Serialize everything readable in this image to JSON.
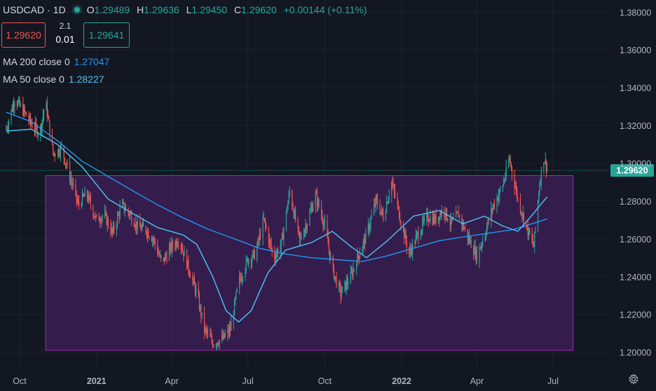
{
  "header": {
    "symbol": "USDCAD",
    "separator": "·",
    "interval": "1D",
    "ohlc": [
      {
        "key": "O",
        "value": "1.29489"
      },
      {
        "key": "H",
        "value": "1.29636"
      },
      {
        "key": "L",
        "value": "1.29450"
      },
      {
        "key": "C",
        "value": "1.29620"
      },
      {
        "key": "",
        "value": "+0.00144 (+0.11%)"
      }
    ]
  },
  "trade": {
    "sell_price": "1.29620",
    "buy_price": "1.29641",
    "spread_top": "2.1",
    "spread_bottom": "0.01"
  },
  "indicators": [
    {
      "label": "MA 200 close 0",
      "value": "1.27047",
      "color": "#2196f3"
    },
    {
      "label": "MA 50 close 0",
      "value": "1.28227",
      "color": "#4fc3f7"
    }
  ],
  "colors": {
    "background": "#131722",
    "up": "#26a69a",
    "down": "#ef5350",
    "zone_fill": "#3b1f53",
    "zone_border": "#9c27b0",
    "current_price_label": "#26a69a"
  },
  "chart_data": {
    "type": "line",
    "instrument": "USDCAD",
    "interval": "1D",
    "x_ticks": [
      "Oct",
      "2021",
      "Apr",
      "Jul",
      "Oct",
      "2022",
      "Apr",
      "Jul"
    ],
    "x_tick_dates": [
      "2020-10-01",
      "2021-01-01",
      "2021-04-01",
      "2021-07-01",
      "2021-10-01",
      "2022-01-01",
      "2022-04-01",
      "2022-07-01"
    ],
    "ylim": [
      1.1906,
      1.3864
    ],
    "y_ticks": [
      "1.20000",
      "1.22000",
      "1.24000",
      "1.26000",
      "1.28000",
      "1.30000",
      "1.32000",
      "1.34000",
      "1.36000",
      "1.38000"
    ],
    "current_price": "1.29620",
    "price_series": {
      "name": "",
      "points": [
        [
          "2020-09-15",
          1.318
        ],
        [
          "2020-09-25",
          1.334
        ],
        [
          "2020-10-05",
          1.328
        ],
        [
          "2020-10-15",
          1.321
        ],
        [
          "2020-10-25",
          1.316
        ],
        [
          "2020-11-01",
          1.333
        ],
        [
          "2020-11-10",
          1.305
        ],
        [
          "2020-11-20",
          1.308
        ],
        [
          "2020-12-01",
          1.292
        ],
        [
          "2020-12-10",
          1.278
        ],
        [
          "2020-12-20",
          1.284
        ],
        [
          "2021-01-01",
          1.27
        ],
        [
          "2021-01-10",
          1.273
        ],
        [
          "2021-01-20",
          1.263
        ],
        [
          "2021-01-31",
          1.278
        ],
        [
          "2021-02-10",
          1.273
        ],
        [
          "2021-02-20",
          1.266
        ],
        [
          "2021-03-01",
          1.265
        ],
        [
          "2021-03-10",
          1.26
        ],
        [
          "2021-03-20",
          1.247
        ],
        [
          "2021-04-01",
          1.256
        ],
        [
          "2021-04-10",
          1.26
        ],
        [
          "2021-04-20",
          1.246
        ],
        [
          "2021-05-01",
          1.231
        ],
        [
          "2021-05-10",
          1.212
        ],
        [
          "2021-05-20",
          1.205
        ],
        [
          "2021-06-01",
          1.207
        ],
        [
          "2021-06-10",
          1.212
        ],
        [
          "2021-06-20",
          1.237
        ],
        [
          "2021-07-01",
          1.249
        ],
        [
          "2021-07-10",
          1.252
        ],
        [
          "2021-07-20",
          1.27
        ],
        [
          "2021-08-01",
          1.25
        ],
        [
          "2021-08-10",
          1.257
        ],
        [
          "2021-08-20",
          1.285
        ],
        [
          "2021-09-01",
          1.259
        ],
        [
          "2021-09-10",
          1.269
        ],
        [
          "2021-09-20",
          1.283
        ],
        [
          "2021-10-01",
          1.267
        ],
        [
          "2021-10-10",
          1.244
        ],
        [
          "2021-10-20",
          1.231
        ],
        [
          "2021-11-01",
          1.24
        ],
        [
          "2021-11-10",
          1.251
        ],
        [
          "2021-11-20",
          1.262
        ],
        [
          "2021-12-01",
          1.28
        ],
        [
          "2021-12-10",
          1.272
        ],
        [
          "2021-12-20",
          1.29
        ],
        [
          "2022-01-01",
          1.268
        ],
        [
          "2022-01-10",
          1.252
        ],
        [
          "2022-01-20",
          1.262
        ],
        [
          "2022-02-01",
          1.272
        ],
        [
          "2022-02-10",
          1.27
        ],
        [
          "2022-02-20",
          1.276
        ],
        [
          "2022-03-01",
          1.268
        ],
        [
          "2022-03-10",
          1.273
        ],
        [
          "2022-03-20",
          1.262
        ],
        [
          "2022-04-01",
          1.251
        ],
        [
          "2022-04-10",
          1.262
        ],
        [
          "2022-04-20",
          1.277
        ],
        [
          "2022-05-01",
          1.287
        ],
        [
          "2022-05-10",
          1.302
        ],
        [
          "2022-05-20",
          1.281
        ],
        [
          "2022-06-01",
          1.264
        ],
        [
          "2022-06-08",
          1.256
        ],
        [
          "2022-06-15",
          1.29
        ],
        [
          "2022-06-20",
          1.303
        ],
        [
          "2022-06-25",
          1.2962
        ]
      ]
    },
    "series": [
      {
        "name": "MA 200 close 0",
        "color": "#2196f3",
        "points": [
          [
            "2020-09-15",
            1.327
          ],
          [
            "2020-10-15",
            1.322
          ],
          [
            "2020-11-15",
            1.312
          ],
          [
            "2020-12-15",
            1.301
          ],
          [
            "2021-01-15",
            1.293
          ],
          [
            "2021-02-15",
            1.285
          ],
          [
            "2021-03-15",
            1.278
          ],
          [
            "2021-04-15",
            1.271
          ],
          [
            "2021-05-15",
            1.265
          ],
          [
            "2021-06-15",
            1.26
          ],
          [
            "2021-07-15",
            1.255
          ],
          [
            "2021-08-15",
            1.252
          ],
          [
            "2021-09-15",
            1.25
          ],
          [
            "2021-10-15",
            1.249
          ],
          [
            "2021-11-15",
            1.248
          ],
          [
            "2021-12-15",
            1.251
          ],
          [
            "2022-01-15",
            1.255
          ],
          [
            "2022-02-15",
            1.259
          ],
          [
            "2022-03-15",
            1.261
          ],
          [
            "2022-04-15",
            1.263
          ],
          [
            "2022-05-15",
            1.265
          ],
          [
            "2022-06-24",
            1.27047
          ]
        ]
      },
      {
        "name": "MA 50 close 0",
        "color": "#4fc3f7",
        "points": [
          [
            "2020-09-15",
            1.317
          ],
          [
            "2020-10-15",
            1.318
          ],
          [
            "2020-11-15",
            1.31
          ],
          [
            "2020-12-15",
            1.298
          ],
          [
            "2021-01-15",
            1.281
          ],
          [
            "2021-02-15",
            1.273
          ],
          [
            "2021-03-15",
            1.266
          ],
          [
            "2021-04-15",
            1.262
          ],
          [
            "2021-05-01",
            1.257
          ],
          [
            "2021-05-20",
            1.24
          ],
          [
            "2021-06-05",
            1.222
          ],
          [
            "2021-06-20",
            1.216
          ],
          [
            "2021-07-05",
            1.222
          ],
          [
            "2021-07-25",
            1.242
          ],
          [
            "2021-08-15",
            1.254
          ],
          [
            "2021-09-15",
            1.258
          ],
          [
            "2021-10-10",
            1.264
          ],
          [
            "2021-11-01",
            1.256
          ],
          [
            "2021-11-20",
            1.25
          ],
          [
            "2021-12-15",
            1.259
          ],
          [
            "2022-01-15",
            1.272
          ],
          [
            "2022-02-15",
            1.275
          ],
          [
            "2022-03-15",
            1.268
          ],
          [
            "2022-04-10",
            1.272
          ],
          [
            "2022-05-01",
            1.267
          ],
          [
            "2022-05-20",
            1.264
          ],
          [
            "2022-06-05",
            1.272
          ],
          [
            "2022-06-24",
            1.28227
          ]
        ]
      }
    ],
    "zone": {
      "from_date": "2020-11-01",
      "to_date": "2022-07-25",
      "low": 1.201,
      "high": 1.2935
    }
  }
}
